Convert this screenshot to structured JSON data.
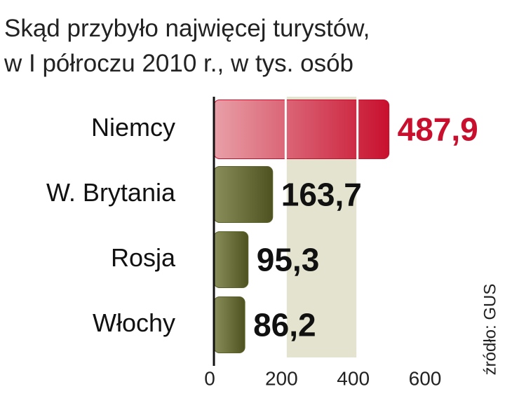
{
  "chart_data": {
    "type": "bar",
    "orientation": "horizontal",
    "title": [
      "Skąd przybyło najwięcej turystów,",
      "w I półroczu 2010 r., w tys. osób"
    ],
    "categories": [
      "Niemcy",
      "W. Brytania",
      "Rosja",
      "Włochy"
    ],
    "values": [
      487.9,
      163.7,
      95.3,
      86.2
    ],
    "value_labels": [
      "487,9",
      "163,7",
      "95,3",
      "86,2"
    ],
    "colors": [
      "#c8102e",
      "#5b5f28",
      "#5b5f28",
      "#5b5f28"
    ],
    "value_label_colors": [
      "#c8102e",
      "#111111",
      "#111111",
      "#111111"
    ],
    "xlim": [
      0,
      600
    ],
    "xticks": [
      0,
      200,
      400,
      600
    ],
    "grid": true,
    "source": "źródło: GUS"
  }
}
